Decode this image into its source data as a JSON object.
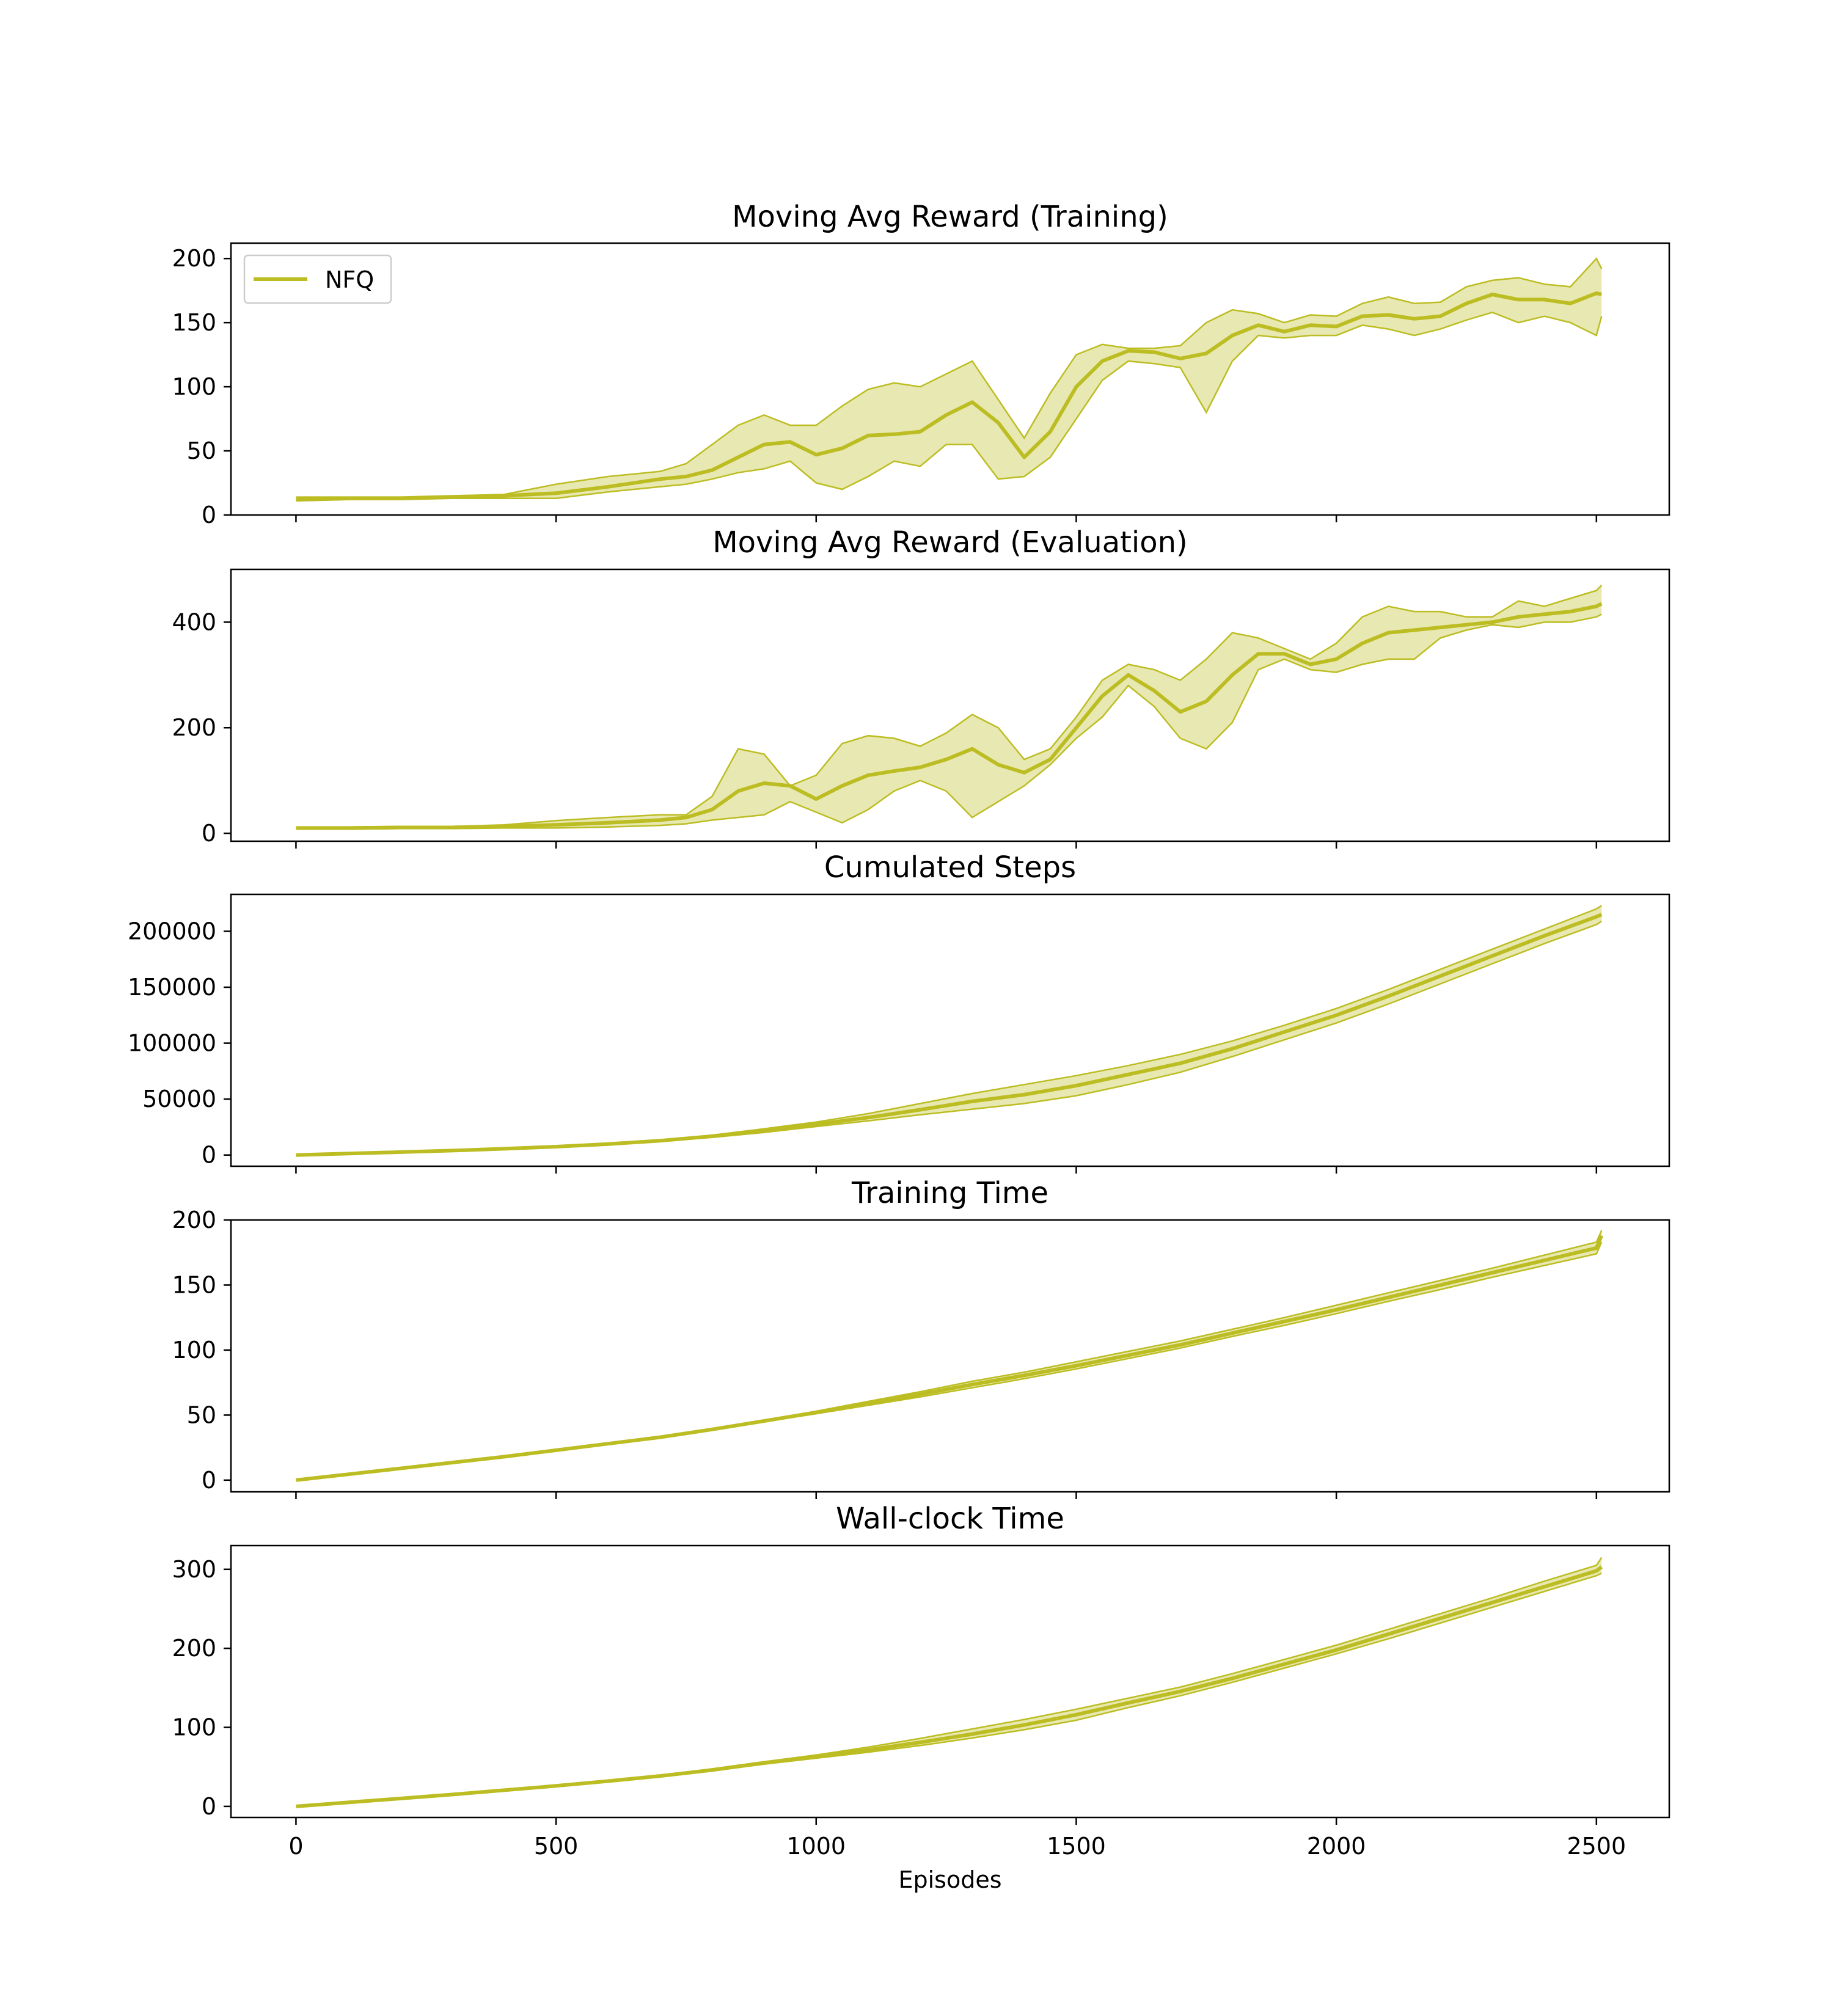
{
  "chart_data": [
    {
      "type": "line",
      "title": "Moving Avg Reward (Training)",
      "xlabel": "",
      "ylabel": "",
      "xlim": [
        -125,
        2640
      ],
      "ylim": [
        0,
        212
      ],
      "xticks": [
        0,
        500,
        1000,
        1500,
        2000,
        2500
      ],
      "xtick_labels": [
        "",
        "",
        "",
        "",
        "",
        ""
      ],
      "yticks": [
        0,
        50,
        100,
        150,
        200
      ],
      "ytick_labels": [
        "0",
        "50",
        "100",
        "150",
        "200"
      ],
      "legend": {
        "position": "upper-left",
        "entries": [
          "NFQ"
        ]
      },
      "grid": false,
      "color": "#bcbd22",
      "series": [
        {
          "name": "NFQ",
          "x": [
            0,
            100,
            200,
            300,
            400,
            500,
            600,
            700,
            750,
            800,
            850,
            900,
            950,
            1000,
            1050,
            1100,
            1150,
            1200,
            1250,
            1300,
            1350,
            1400,
            1450,
            1500,
            1550,
            1600,
            1650,
            1700,
            1750,
            1800,
            1850,
            1900,
            1950,
            2000,
            2050,
            2100,
            2150,
            2200,
            2250,
            2300,
            2350,
            2400,
            2450,
            2500,
            2510
          ],
          "mean": [
            12,
            13,
            13,
            14,
            15,
            17,
            22,
            28,
            30,
            35,
            45,
            55,
            57,
            47,
            52,
            62,
            63,
            65,
            78,
            88,
            72,
            45,
            65,
            100,
            120,
            128,
            127,
            122,
            126,
            140,
            148,
            143,
            148,
            147,
            155,
            156,
            153,
            155,
            165,
            172,
            168,
            168,
            165,
            173,
            172
          ],
          "upper": [
            14,
            14,
            14,
            15,
            16,
            24,
            30,
            34,
            40,
            55,
            70,
            78,
            70,
            70,
            85,
            98,
            103,
            100,
            110,
            120,
            90,
            60,
            95,
            125,
            133,
            130,
            130,
            132,
            150,
            160,
            157,
            150,
            156,
            155,
            165,
            170,
            165,
            166,
            178,
            183,
            185,
            180,
            178,
            200,
            192
          ],
          "lower": [
            11,
            12,
            12,
            13,
            13,
            13,
            18,
            22,
            24,
            28,
            33,
            36,
            42,
            25,
            20,
            30,
            42,
            38,
            55,
            55,
            28,
            30,
            45,
            75,
            105,
            120,
            118,
            115,
            80,
            120,
            140,
            138,
            140,
            140,
            148,
            145,
            140,
            145,
            152,
            158,
            150,
            155,
            150,
            140,
            155
          ]
        }
      ]
    },
    {
      "type": "line",
      "title": "Moving Avg Reward (Evaluation)",
      "xlabel": "",
      "ylabel": "",
      "xlim": [
        -125,
        2640
      ],
      "ylim": [
        -15,
        500
      ],
      "xticks": [
        0,
        500,
        1000,
        1500,
        2000,
        2500
      ],
      "xtick_labels": [
        "",
        "",
        "",
        "",
        "",
        ""
      ],
      "yticks": [
        0,
        200,
        400
      ],
      "ytick_labels": [
        "0",
        "200",
        "400"
      ],
      "grid": false,
      "color": "#bcbd22",
      "series": [
        {
          "name": "NFQ",
          "x": [
            0,
            100,
            200,
            300,
            400,
            500,
            600,
            700,
            750,
            800,
            850,
            900,
            950,
            1000,
            1050,
            1100,
            1150,
            1200,
            1250,
            1300,
            1350,
            1400,
            1450,
            1500,
            1550,
            1600,
            1650,
            1700,
            1750,
            1800,
            1850,
            1900,
            1950,
            2000,
            2050,
            2100,
            2150,
            2200,
            2250,
            2300,
            2350,
            2400,
            2450,
            2500,
            2510
          ],
          "mean": [
            10,
            10,
            11,
            11,
            13,
            16,
            20,
            25,
            30,
            45,
            80,
            95,
            90,
            65,
            90,
            110,
            118,
            125,
            140,
            160,
            130,
            115,
            140,
            200,
            260,
            300,
            270,
            230,
            250,
            300,
            340,
            340,
            320,
            330,
            360,
            380,
            385,
            390,
            395,
            400,
            410,
            415,
            420,
            430,
            435
          ],
          "upper": [
            12,
            12,
            13,
            13,
            16,
            24,
            30,
            35,
            35,
            70,
            160,
            150,
            90,
            110,
            170,
            185,
            180,
            165,
            190,
            225,
            200,
            140,
            160,
            220,
            290,
            320,
            310,
            290,
            330,
            380,
            370,
            350,
            330,
            360,
            410,
            430,
            420,
            420,
            410,
            410,
            440,
            430,
            445,
            460,
            470
          ],
          "lower": [
            8,
            8,
            9,
            9,
            10,
            10,
            12,
            15,
            18,
            25,
            30,
            35,
            60,
            40,
            20,
            45,
            80,
            100,
            80,
            30,
            60,
            90,
            130,
            180,
            220,
            280,
            240,
            180,
            160,
            210,
            310,
            330,
            310,
            305,
            320,
            330,
            330,
            370,
            385,
            395,
            390,
            400,
            400,
            410,
            415
          ]
        }
      ]
    },
    {
      "type": "line",
      "title": "Cumulated Steps",
      "xlabel": "",
      "ylabel": "",
      "xlim": [
        -125,
        2640
      ],
      "ylim": [
        -10000,
        233000
      ],
      "xticks": [
        0,
        500,
        1000,
        1500,
        2000,
        2500
      ],
      "xtick_labels": [
        "",
        "",
        "",
        "",
        "",
        ""
      ],
      "yticks": [
        0,
        50000,
        100000,
        150000,
        200000
      ],
      "ytick_labels": [
        "0",
        "50000",
        "100000",
        "150000",
        "200000"
      ],
      "grid": false,
      "color": "#bcbd22",
      "series": [
        {
          "name": "NFQ",
          "x": [
            0,
            100,
            200,
            300,
            400,
            500,
            600,
            700,
            800,
            900,
            1000,
            1100,
            1200,
            1300,
            1400,
            1500,
            1600,
            1700,
            1800,
            1900,
            2000,
            2100,
            2200,
            2300,
            2400,
            2500,
            2510
          ],
          "mean": [
            0,
            1300,
            2600,
            4000,
            5600,
            7500,
            9800,
            12800,
            16800,
            21800,
            27500,
            33500,
            40500,
            48000,
            54000,
            62000,
            72000,
            82000,
            95000,
            110000,
            125000,
            142000,
            160000,
            178000,
            196000,
            213000,
            215000
          ],
          "upper": [
            0,
            1400,
            2800,
            4200,
            5900,
            7900,
            10300,
            13500,
            17800,
            23500,
            29500,
            37000,
            46000,
            55000,
            63000,
            71000,
            80000,
            90000,
            102000,
            116000,
            131000,
            148000,
            166000,
            184000,
            202000,
            220000,
            223000
          ],
          "lower": [
            0,
            1200,
            2400,
            3800,
            5300,
            7100,
            9300,
            12100,
            15800,
            20200,
            25500,
            30500,
            36000,
            41000,
            46000,
            53000,
            63000,
            74000,
            88000,
            103000,
            118000,
            135000,
            153000,
            171000,
            189000,
            206000,
            209000
          ]
        }
      ]
    },
    {
      "type": "line",
      "title": "Training Time",
      "xlabel": "",
      "ylabel": "",
      "xlim": [
        -125,
        2640
      ],
      "ylim": [
        -9,
        200
      ],
      "xticks": [
        0,
        500,
        1000,
        1500,
        2000,
        2500
      ],
      "xtick_labels": [
        "",
        "",
        "",
        "",
        "",
        ""
      ],
      "yticks": [
        0,
        50,
        100,
        150,
        200
      ],
      "ytick_labels": [
        "0",
        "50",
        "100",
        "150",
        "200"
      ],
      "grid": false,
      "color": "#bcbd22",
      "series": [
        {
          "name": "NFQ",
          "x": [
            0,
            100,
            200,
            300,
            400,
            500,
            600,
            700,
            800,
            900,
            1000,
            1100,
            1200,
            1300,
            1400,
            1500,
            1600,
            1700,
            1800,
            1900,
            2000,
            2100,
            2200,
            2300,
            2400,
            2500,
            2510
          ],
          "mean": [
            0,
            4.5,
            9,
            13.5,
            18,
            23,
            28,
            33,
            39,
            45.5,
            52,
            59,
            66,
            73.5,
            80.5,
            88,
            96,
            104,
            113,
            122,
            131,
            140.5,
            150,
            159.5,
            169,
            178.5,
            188
          ],
          "upper": [
            0,
            4.6,
            9.2,
            13.8,
            18.5,
            23.5,
            28.5,
            33.5,
            39.5,
            46,
            53,
            60.5,
            68,
            76,
            83,
            91,
            99,
            107,
            116,
            125,
            134.5,
            144,
            153.5,
            163,
            173,
            183,
            192
          ],
          "lower": [
            0,
            4.4,
            8.8,
            13.2,
            17.5,
            22.5,
            27.5,
            32.5,
            38.5,
            45,
            51,
            57.5,
            64,
            71,
            78,
            85.5,
            93.5,
            101.5,
            110.5,
            119,
            128,
            137.5,
            146.5,
            156,
            165,
            174,
            183
          ]
        }
      ]
    },
    {
      "type": "line",
      "title": "Wall-clock Time",
      "xlabel": "Episodes",
      "ylabel": "",
      "xlim": [
        -125,
        2640
      ],
      "ylim": [
        -14,
        330
      ],
      "xticks": [
        0,
        500,
        1000,
        1500,
        2000,
        2500
      ],
      "xtick_labels": [
        "0",
        "500",
        "1000",
        "1500",
        "2000",
        "2500"
      ],
      "yticks": [
        0,
        100,
        200,
        300
      ],
      "ytick_labels": [
        "0",
        "100",
        "200",
        "300"
      ],
      "grid": false,
      "color": "#bcbd22",
      "series": [
        {
          "name": "NFQ",
          "x": [
            0,
            100,
            200,
            300,
            400,
            500,
            600,
            700,
            800,
            900,
            1000,
            1100,
            1200,
            1300,
            1400,
            1500,
            1600,
            1700,
            1800,
            1900,
            2000,
            2100,
            2200,
            2300,
            2400,
            2500,
            2510
          ],
          "mean": [
            0,
            5,
            10,
            15,
            20.5,
            26,
            32,
            38.5,
            46,
            55,
            63,
            71.5,
            81,
            91.5,
            103,
            116,
            131,
            145.5,
            162,
            180,
            198,
            218,
            238,
            258,
            278,
            298,
            303
          ],
          "upper": [
            0,
            5.1,
            10.2,
            15.3,
            21,
            26.5,
            32.5,
            39.5,
            47.5,
            56.5,
            65,
            75,
            86,
            98,
            110,
            123,
            137,
            151,
            168,
            186,
            204,
            224,
            244,
            264,
            285,
            305,
            315
          ],
          "lower": [
            0,
            4.9,
            9.8,
            14.7,
            20,
            25.5,
            31.5,
            37.5,
            45,
            53.5,
            61,
            68.5,
            77,
            86.5,
            97,
            109,
            125,
            140,
            157,
            175,
            193,
            212,
            232,
            252,
            272,
            292,
            295
          ]
        }
      ]
    }
  ]
}
